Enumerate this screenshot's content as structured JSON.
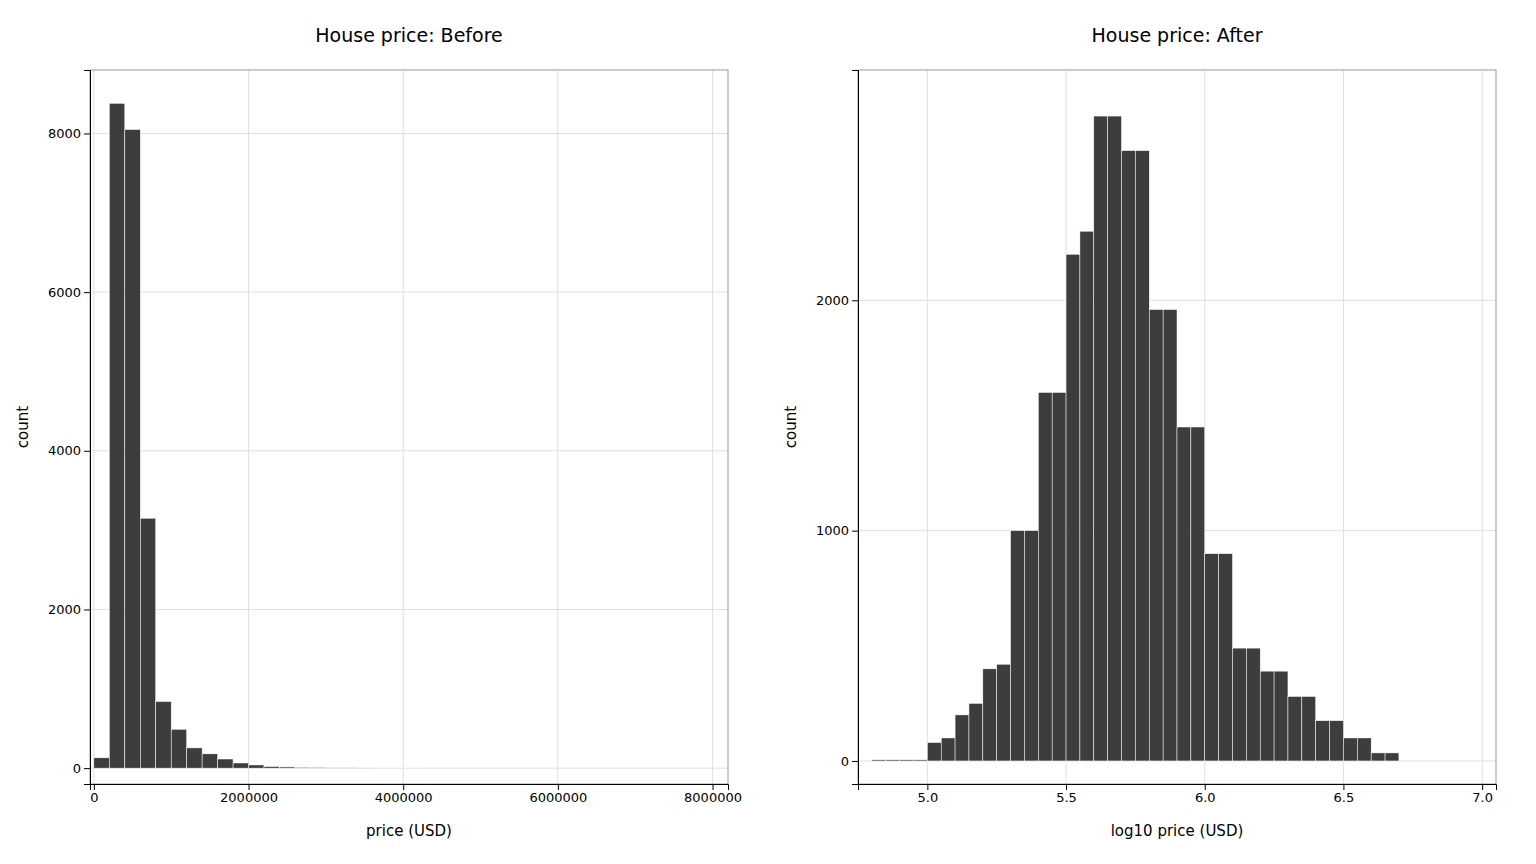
{
  "chart_data": [
    {
      "type": "histogram",
      "title": "House price: Before",
      "xlabel": "price (USD)",
      "ylabel": "count",
      "color": "#3d3d3d",
      "bins": [
        0,
        200000,
        400000,
        600000,
        800000,
        1000000,
        1200000,
        1400000,
        1600000,
        1800000,
        2000000,
        2200000,
        2400000,
        2600000,
        2800000,
        3000000,
        3200000,
        3400000,
        3600000,
        3800000,
        4000000,
        4200000
      ],
      "values": [
        130,
        8380,
        8050,
        3150,
        840,
        490,
        255,
        180,
        115,
        65,
        40,
        20,
        15,
        10,
        8,
        5,
        3,
        2,
        1,
        1,
        1
      ],
      "xlim": [
        -50000,
        8200000
      ],
      "ylim": [
        -200,
        8800
      ],
      "xticks": [
        0,
        2000000,
        4000000,
        6000000,
        8000000
      ],
      "yticks": [
        0,
        2000,
        4000,
        6000,
        8000
      ],
      "grid": true
    },
    {
      "type": "histogram",
      "title": "House price: After",
      "xlabel": "log10 price (USD)",
      "ylabel": "count",
      "color": "#3d3d3d",
      "bins": [
        4.8,
        4.85,
        4.9,
        4.95,
        5.0,
        5.05,
        5.1,
        5.15,
        5.2,
        5.25,
        5.3,
        5.35,
        5.4,
        5.45,
        5.5,
        5.55,
        5.6,
        5.65,
        5.7,
        5.75,
        5.8,
        5.85,
        5.9,
        5.95,
        6.0,
        6.05,
        6.1,
        6.15,
        6.2,
        6.25,
        6.3,
        6.35,
        6.4,
        6.45,
        6.5,
        6.55,
        6.6,
        6.65,
        6.7
      ],
      "values": [
        5,
        5,
        5,
        5,
        80,
        100,
        200,
        250,
        400,
        420,
        1000,
        1000,
        1600,
        1600,
        2200,
        2300,
        2800,
        2800,
        2650,
        2650,
        1960,
        1960,
        1450,
        1450,
        900,
        900,
        490,
        490,
        390,
        390,
        280,
        280,
        175,
        175,
        100,
        100,
        35,
        35
      ],
      "xlim": [
        4.75,
        7.05
      ],
      "ylim": [
        -100,
        3000
      ],
      "xticks": [
        {
          "value": 5.0,
          "label": "5.0"
        },
        5.5,
        {
          "value": 6.0,
          "label": "6.0"
        },
        6.5,
        {
          "value": 7.0,
          "label": "7.0"
        }
      ],
      "yticks": [
        0,
        1000,
        2000
      ],
      "grid": true
    }
  ]
}
